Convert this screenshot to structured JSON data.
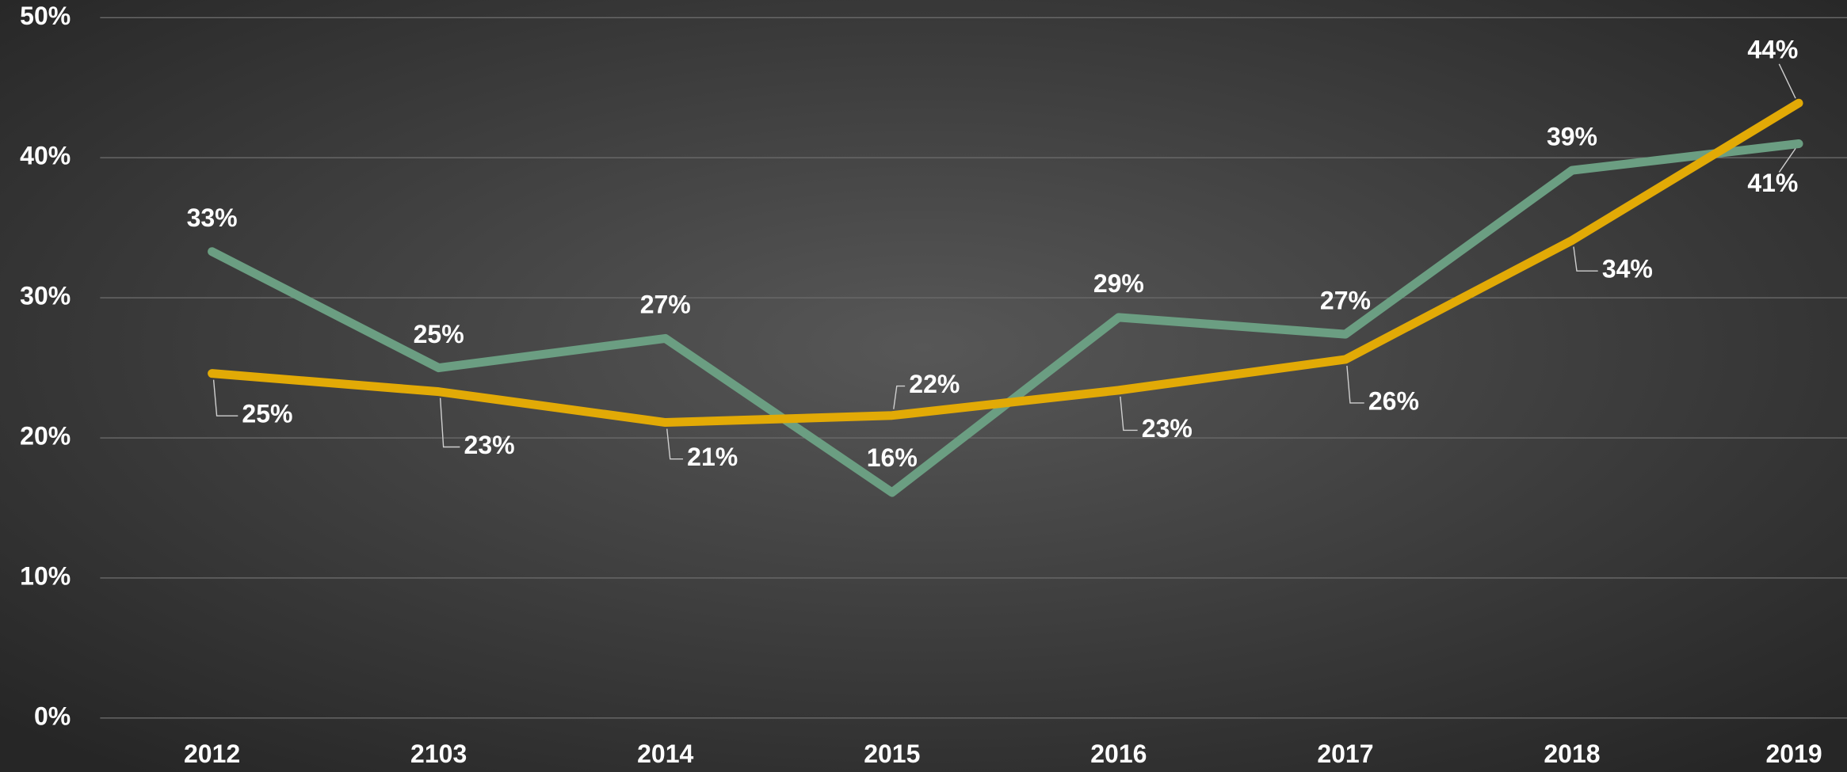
{
  "chart_data": {
    "type": "line",
    "categories": [
      "2012",
      "2103",
      "2014",
      "2015",
      "2016",
      "2017",
      "2018",
      "2019"
    ],
    "series": [
      {
        "color": "#6b9e82",
        "values": [
          33.3,
          25.0,
          27.1,
          16.1,
          28.6,
          27.4,
          39.1,
          41.0
        ],
        "value_labels": [
          "33%",
          "25%",
          "27%",
          "16%",
          "29%",
          "27%",
          "39%",
          "41%"
        ]
      },
      {
        "color": "#e2aa06",
        "values": [
          24.6,
          23.3,
          21.1,
          21.6,
          23.4,
          25.6,
          34.1,
          43.9
        ],
        "value_labels": [
          "25%",
          "23%",
          "21%",
          "22%",
          "23%",
          "26%",
          "34%",
          "44%"
        ]
      }
    ],
    "ylim": [
      0,
      50
    ],
    "yticks": [
      {
        "value": 0,
        "label": "0%"
      },
      {
        "value": 10,
        "label": "10%"
      },
      {
        "value": 20,
        "label": "20%"
      },
      {
        "value": 30,
        "label": "30%"
      },
      {
        "value": 40,
        "label": "40%"
      },
      {
        "value": 50,
        "label": "50%"
      }
    ],
    "grid": true
  }
}
